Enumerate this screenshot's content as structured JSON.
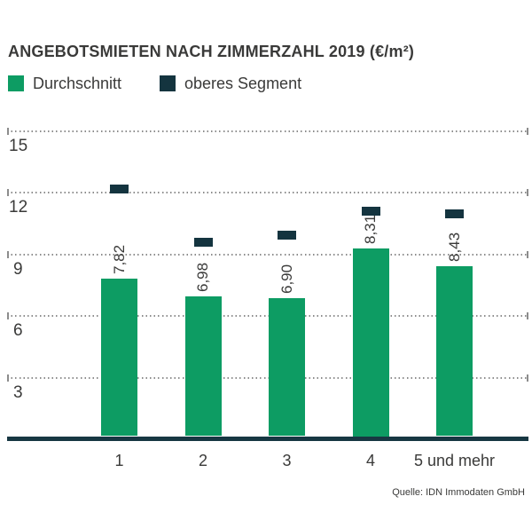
{
  "title": "ANGEBOTSMIETEN NACH ZIMMERZAHL 2019 (€/m²)",
  "source": "Quelle: IDN Immodaten GmbH",
  "colors": {
    "average_green": "#0D9C63",
    "upper_segment_dark": "#14343F",
    "axis_dark": "#173742",
    "grid_gray": "#8C8C8C",
    "text_dark": "#3A3A39"
  },
  "legend": [
    {
      "label": "Durchschnitt",
      "color": "#0D9C63"
    },
    {
      "label": "oberes Segment",
      "color": "#14343F"
    }
  ],
  "chart_data": {
    "type": "bar",
    "title": "ANGEBOTSMIETEN NACH ZIMMERZAHL 2019 (€/m²)",
    "categories": [
      "1",
      "2",
      "3",
      "4",
      "5 und mehr"
    ],
    "series": [
      {
        "name": "Durchschnitt",
        "mark": "bar",
        "color": "#0D9C63",
        "values": [
          7.82,
          6.98,
          6.9,
          8.31,
          8.43
        ],
        "value_labels": [
          "7,82",
          "6,98",
          "6,90",
          "8,31",
          "8,43"
        ]
      },
      {
        "name": "oberes Segment",
        "mark": "dash-marker",
        "color": "#14343F",
        "values_estimated": [
          12.2,
          9.6,
          9.95,
          11.1,
          11.0
        ]
      }
    ],
    "xlabel": "",
    "ylabel": "€/m²",
    "y_ticks": [
      15,
      12,
      9,
      6,
      3
    ],
    "ylim": [
      0,
      15.5
    ],
    "grid": "dotted horizontal with end ticks",
    "legend_position": "top-left",
    "value_label_rotation": "90deg bottom-to-top",
    "decimal_separator": ","
  }
}
